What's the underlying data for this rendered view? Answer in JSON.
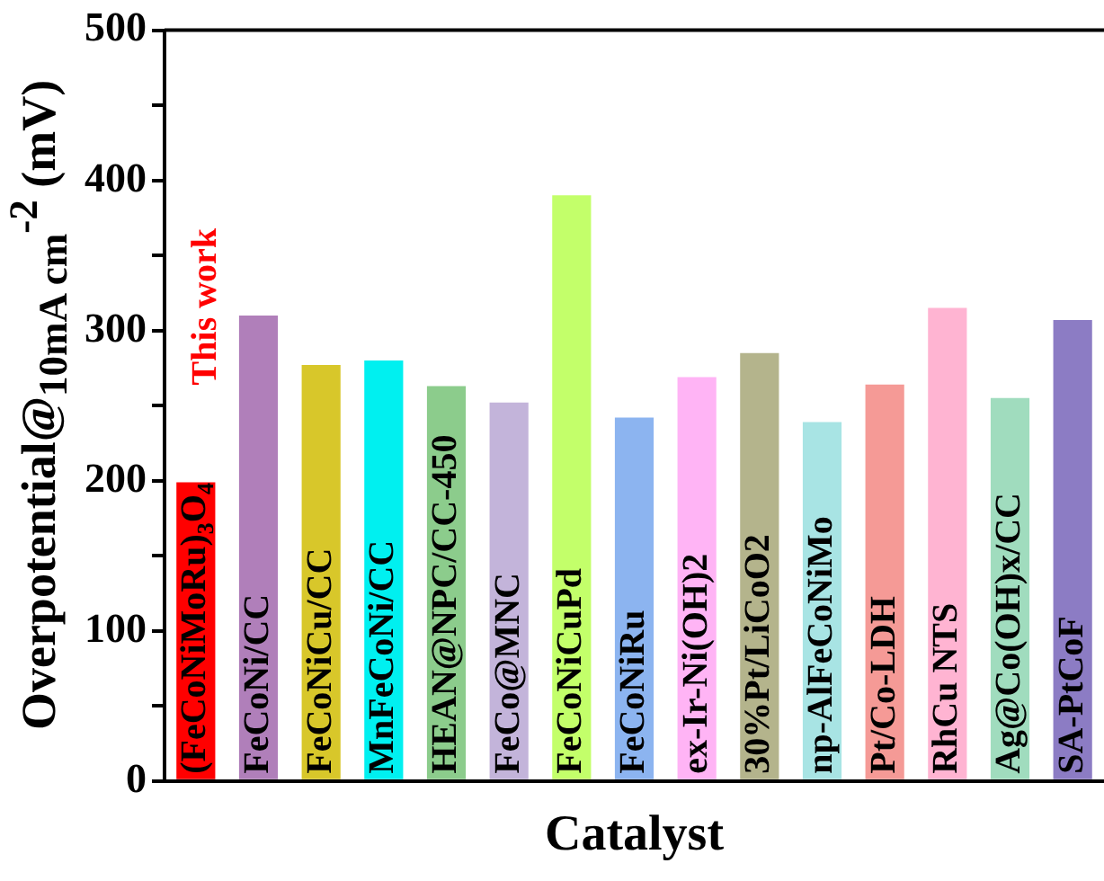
{
  "chart_data": {
    "type": "bar",
    "xlabel": "Catalyst",
    "ylabel": "Overpotential@$_{10mA cm}$$^{-2}$ (mV)",
    "categories": [
      "(FeCoNiMoRu)$_{3}$O$_{4}$",
      "FeCoNi/CC",
      "FeCoNiCu/CC",
      "MnFeCoNi/CC",
      "HEAN@NPC/CC-450",
      "FeCo@MNC",
      "FeCoNiCuPd",
      "FeCoNiRu",
      "ex-Ir-Ni(OH)2",
      "30%Pt/LiCoO2",
      "np-AlFeCoNiMo",
      "Pt/Co-LDH",
      "RhCu NTS",
      "Ag@Co(OH)x/CC",
      "SA-PtCoF"
    ],
    "values": [
      199,
      310,
      277,
      280,
      263,
      252,
      390,
      242,
      269,
      285,
      239,
      264,
      315,
      255,
      307
    ],
    "colors": [
      "#ff0000",
      "#b07fba",
      "#d8c72a",
      "#00f0f0",
      "#8ccc8c",
      "#c3b4da",
      "#c3ff6a",
      "#8cb4f0",
      "#ffb4f5",
      "#b4b48c",
      "#a8e4e4",
      "#f59a96",
      "#ffb4d2",
      "#a0dcbe",
      "#8c7cc4"
    ],
    "ylim": [
      0,
      500
    ],
    "yticks": [
      0,
      {
        "value": 50,
        "label": null
      },
      100,
      {
        "value": 150,
        "label": null
      },
      200,
      {
        "value": 250,
        "label": null
      },
      300,
      {
        "value": 350,
        "label": null
      },
      400,
      {
        "value": 450,
        "label": null
      },
      500
    ],
    "annotations": [
      "This work"
    ],
    "grid": false,
    "legend": false
  }
}
